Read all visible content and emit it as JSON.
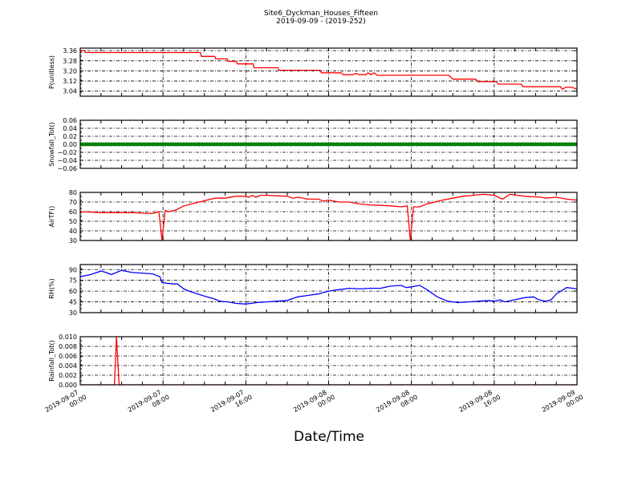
{
  "chart_data": {
    "type": "line",
    "title": "Site6_Dyckman_Houses_Fifteen",
    "subtitle": "2019-09-09 - (2019-252)",
    "xlabel": "Date/Time",
    "x_units": "hours since 2019-09-07 00:00",
    "xlim": [
      0,
      48
    ],
    "x_ticks": [
      {
        "h": 0,
        "l1": "2019-09-07",
        "l2": "00:00"
      },
      {
        "h": 8,
        "l1": "2019-09-07",
        "l2": "08:00"
      },
      {
        "h": 16,
        "l1": "2019-09-07",
        "l2": "16:00"
      },
      {
        "h": 24,
        "l1": "2019-09-08",
        "l2": "00:00"
      },
      {
        "h": 32,
        "l1": "2019-09-08",
        "l2": "08:00"
      },
      {
        "h": 40,
        "l1": "2019-09-08",
        "l2": "16:00"
      },
      {
        "h": 48,
        "l1": "2019-09-09",
        "l2": "00:00"
      }
    ],
    "grid": true,
    "panels": [
      {
        "ylabel": "P(unitless)",
        "ylim": [
          3.0,
          3.38
        ],
        "yticks": [
          "3.36",
          "3.28",
          "3.20",
          "3.12",
          "3.04"
        ],
        "color": "#ff0000",
        "style": "line",
        "points": [
          [
            0,
            3.36
          ],
          [
            0.4,
            3.36
          ],
          [
            0.5,
            3.345
          ],
          [
            11.6,
            3.345
          ],
          [
            11.7,
            3.315
          ],
          [
            13,
            3.315
          ],
          [
            13.1,
            3.295
          ],
          [
            14.2,
            3.295
          ],
          [
            14.3,
            3.275
          ],
          [
            15.1,
            3.275
          ],
          [
            15.2,
            3.255
          ],
          [
            16.7,
            3.255
          ],
          [
            16.8,
            3.225
          ],
          [
            19.1,
            3.225
          ],
          [
            19.2,
            3.205
          ],
          [
            23.2,
            3.205
          ],
          [
            23.3,
            3.185
          ],
          [
            25.2,
            3.185
          ],
          [
            25.4,
            3.17
          ],
          [
            26.3,
            3.17
          ],
          [
            26.6,
            3.18
          ],
          [
            27,
            3.17
          ],
          [
            27.6,
            3.17
          ],
          [
            27.8,
            3.185
          ],
          [
            28.1,
            3.17
          ],
          [
            28.4,
            3.185
          ],
          [
            28.7,
            3.165
          ],
          [
            35.6,
            3.165
          ],
          [
            36,
            3.135
          ],
          [
            38.2,
            3.135
          ],
          [
            38.4,
            3.115
          ],
          [
            40.2,
            3.115
          ],
          [
            40.4,
            3.095
          ],
          [
            42.6,
            3.095
          ],
          [
            42.8,
            3.075
          ],
          [
            46.4,
            3.075
          ],
          [
            46.6,
            3.055
          ],
          [
            46.9,
            3.07
          ],
          [
            47.5,
            3.07
          ],
          [
            48,
            3.055
          ]
        ]
      },
      {
        "ylabel": "Snowfall_Tot()",
        "ylim": [
          -0.06,
          0.06
        ],
        "yticks": [
          "0.06",
          "0.04",
          "0.02",
          "0.00",
          "−0.02",
          "−0.04",
          "−0.06"
        ],
        "color": "#008000",
        "style": "markers",
        "points": [
          [
            0,
            0
          ],
          [
            48,
            0
          ]
        ]
      },
      {
        "ylabel": "AirTF()",
        "ylim": [
          30,
          80
        ],
        "yticks": [
          "80",
          "70",
          "60",
          "50",
          "40",
          "30"
        ],
        "color": "#ff0000",
        "style": "line",
        "points": [
          [
            0,
            60
          ],
          [
            2,
            59
          ],
          [
            5,
            59
          ],
          [
            7,
            58
          ],
          [
            7.6,
            60
          ],
          [
            7.9,
            30
          ],
          [
            8.2,
            61
          ],
          [
            8.6,
            60
          ],
          [
            9.3,
            62
          ],
          [
            10,
            66
          ],
          [
            11.5,
            70
          ],
          [
            13,
            74
          ],
          [
            14,
            74
          ],
          [
            15,
            76
          ],
          [
            16,
            76
          ],
          [
            16.3,
            75
          ],
          [
            16.6,
            77
          ],
          [
            17,
            75
          ],
          [
            17.4,
            77
          ],
          [
            18,
            77
          ],
          [
            20,
            76
          ],
          [
            20.6,
            74
          ],
          [
            21,
            75
          ],
          [
            22,
            73
          ],
          [
            23,
            73
          ],
          [
            23.5,
            71
          ],
          [
            24,
            72
          ],
          [
            25,
            70
          ],
          [
            26,
            70
          ],
          [
            27,
            68
          ],
          [
            28,
            67
          ],
          [
            30,
            66
          ],
          [
            31,
            65
          ],
          [
            31.6,
            66
          ],
          [
            31.9,
            30
          ],
          [
            32.2,
            65
          ],
          [
            32.8,
            65
          ],
          [
            33.5,
            68
          ],
          [
            35,
            72
          ],
          [
            36,
            74
          ],
          [
            37,
            76
          ],
          [
            38,
            77
          ],
          [
            39,
            78
          ],
          [
            40,
            77
          ],
          [
            40.8,
            73
          ],
          [
            41.5,
            78
          ],
          [
            43,
            76
          ],
          [
            44.5,
            75
          ],
          [
            45,
            74
          ],
          [
            46,
            75
          ],
          [
            47,
            73
          ],
          [
            48,
            72
          ]
        ]
      },
      {
        "ylabel": "RH(%)",
        "ylim": [
          30,
          97
        ],
        "yticks": [
          "90",
          "75",
          "60",
          "45",
          "30"
        ],
        "color": "#0000ff",
        "style": "line",
        "points": [
          [
            0,
            80
          ],
          [
            1,
            83
          ],
          [
            2,
            88
          ],
          [
            2.5,
            86
          ],
          [
            3,
            83
          ],
          [
            4,
            89
          ],
          [
            5,
            86
          ],
          [
            7,
            84
          ],
          [
            7.7,
            80
          ],
          [
            7.9,
            72
          ],
          [
            8.4,
            71
          ],
          [
            9,
            70
          ],
          [
            9.4,
            70
          ],
          [
            10,
            63
          ],
          [
            10.5,
            60
          ],
          [
            12,
            53
          ],
          [
            13,
            49
          ],
          [
            13.5,
            46
          ],
          [
            14.3,
            45
          ],
          [
            15,
            43
          ],
          [
            16,
            42
          ],
          [
            17,
            44
          ],
          [
            18,
            45
          ],
          [
            19,
            46
          ],
          [
            20,
            47
          ],
          [
            21,
            52
          ],
          [
            22,
            54
          ],
          [
            23,
            56
          ],
          [
            24,
            60
          ],
          [
            25,
            62
          ],
          [
            26,
            64
          ],
          [
            27,
            63
          ],
          [
            28,
            64
          ],
          [
            29,
            64
          ],
          [
            30,
            67
          ],
          [
            31,
            68
          ],
          [
            31.5,
            65
          ],
          [
            32,
            66
          ],
          [
            32.8,
            68
          ],
          [
            33.5,
            62
          ],
          [
            34.5,
            52
          ],
          [
            35.5,
            46
          ],
          [
            36.5,
            44
          ],
          [
            37.5,
            45
          ],
          [
            38.5,
            46
          ],
          [
            39.5,
            47
          ],
          [
            40,
            46
          ],
          [
            40.6,
            48
          ],
          [
            41,
            45
          ],
          [
            42,
            48
          ],
          [
            43,
            51
          ],
          [
            43.8,
            52
          ],
          [
            44.3,
            48
          ],
          [
            45,
            46
          ],
          [
            45.5,
            48
          ],
          [
            46,
            56
          ],
          [
            47,
            65
          ],
          [
            47.6,
            64
          ],
          [
            48,
            63
          ]
        ]
      },
      {
        "ylabel": "Rainfall_Tot()",
        "ylim": [
          0,
          0.01
        ],
        "yticks": [
          "0.010",
          "0.008",
          "0.006",
          "0.004",
          "0.002",
          "0.000"
        ],
        "color": "#ff0000",
        "style": "line",
        "points": [
          [
            0,
            0
          ],
          [
            3.3,
            0
          ],
          [
            3.5,
            0.01
          ],
          [
            3.75,
            0
          ],
          [
            48,
            0
          ]
        ]
      }
    ]
  }
}
